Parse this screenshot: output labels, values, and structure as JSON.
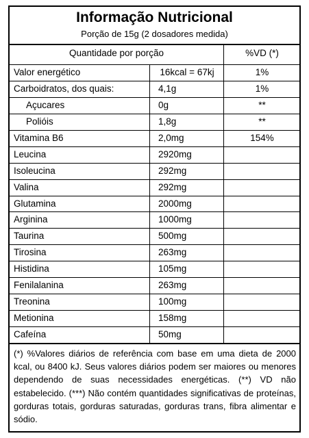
{
  "title": "Informação Nutricional",
  "portion": "Porção de 15g (2 dosadores medida)",
  "column_headers": {
    "quantity": "Quantidade por porção",
    "vd": "%VD (*)"
  },
  "rows": [
    {
      "name": "Valor energético",
      "amount": "16kcal = 67kj",
      "vd": "1%",
      "indent": false
    },
    {
      "name": "Carboidratos, dos quais:",
      "amount": "4,1g",
      "vd": "1%",
      "indent": false
    },
    {
      "name": "Açucares",
      "amount": "0g",
      "vd": "**",
      "indent": true
    },
    {
      "name": "Polióis",
      "amount": "1,8g",
      "vd": "**",
      "indent": true
    },
    {
      "name": "Vitamina B6",
      "amount": "2,0mg",
      "vd": "154%",
      "indent": false
    },
    {
      "name": "Leucina",
      "amount": "2920mg",
      "vd": "",
      "indent": false
    },
    {
      "name": "Isoleucina",
      "amount": "292mg",
      "vd": "",
      "indent": false
    },
    {
      "name": "Valina",
      "amount": "292mg",
      "vd": "",
      "indent": false
    },
    {
      "name": "Glutamina",
      "amount": "2000mg",
      "vd": "",
      "indent": false
    },
    {
      "name": "Arginina",
      "amount": "1000mg",
      "vd": "",
      "indent": false
    },
    {
      "name": "Taurina",
      "amount": "500mg",
      "vd": "",
      "indent": false
    },
    {
      "name": "Tirosina",
      "amount": "263mg",
      "vd": "",
      "indent": false
    },
    {
      "name": "Histidina",
      "amount": "105mg",
      "vd": "",
      "indent": false
    },
    {
      "name": "Fenilalanina",
      "amount": "263mg",
      "vd": "",
      "indent": false
    },
    {
      "name": "Treonina",
      "amount": "100mg",
      "vd": "",
      "indent": false
    },
    {
      "name": "Metionina",
      "amount": "158mg",
      "vd": "",
      "indent": false
    },
    {
      "name": "Cafeína",
      "amount": "50mg",
      "vd": "",
      "indent": false
    }
  ],
  "footnote": "(*) %Valores diários de referência com base em uma dieta de 2000 kcal, ou 8400 kJ. Seus valores diários podem ser maiores ou menores dependendo de suas necessidades energéticas. (**) VD não estabelecido. (***) Não contém quantidades significativas de proteínas, gorduras totais, gorduras saturadas, gorduras trans, fibra alimentar e sódio."
}
